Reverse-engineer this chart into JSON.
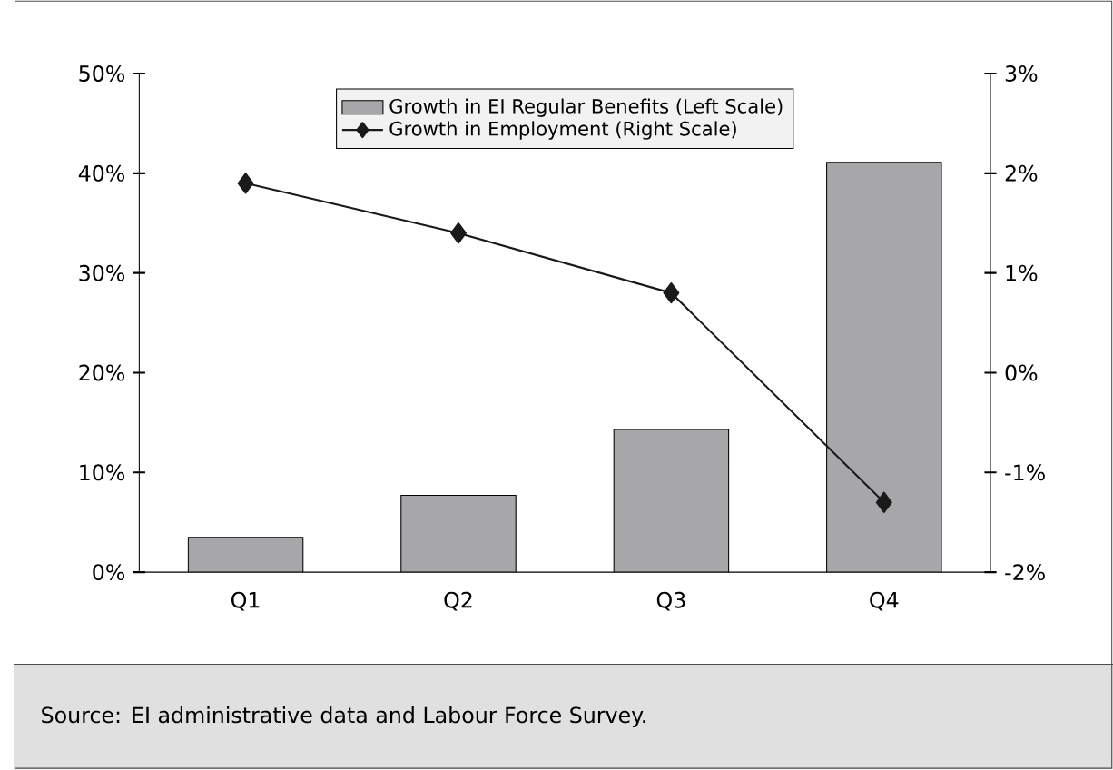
{
  "chart_data": {
    "type": "bar",
    "categories": [
      "Q1",
      "Q2",
      "Q3",
      "Q4"
    ],
    "series": [
      {
        "name": "Growth in EI Regular Benefits (Left Scale)",
        "color": "#a7a7aa",
        "values": [
          3.5,
          7.7,
          14.3,
          41.1
        ]
      },
      {
        "name": "Growth in Employment (Right Scale)",
        "type": "line",
        "axis": "y2",
        "color": "#1a1a1a",
        "marker": "diamond",
        "values": [
          1.9,
          1.4,
          0.8,
          -1.3
        ]
      }
    ],
    "ylim": [
      0,
      50
    ],
    "yticks": [
      {
        "value": 0,
        "label": "0%"
      },
      {
        "value": 10,
        "label": "10%"
      },
      {
        "value": 20,
        "label": "20%"
      },
      {
        "value": 30,
        "label": "30%"
      },
      {
        "value": 40,
        "label": "40%"
      },
      {
        "value": 50,
        "label": "50%"
      }
    ],
    "y2lim": [
      -2,
      3
    ],
    "y2ticks": [
      {
        "value": -2,
        "label": "-2%"
      },
      {
        "value": -1,
        "label": "-1%"
      },
      {
        "value": 0,
        "label": "0%"
      },
      {
        "value": 1,
        "label": "1%"
      },
      {
        "value": 2,
        "label": "2%"
      },
      {
        "value": 3,
        "label": "3%"
      }
    ],
    "legend": "top",
    "grid": false,
    "annotations": [
      "Source: EI administrative data and Labour Force Survey."
    ]
  }
}
